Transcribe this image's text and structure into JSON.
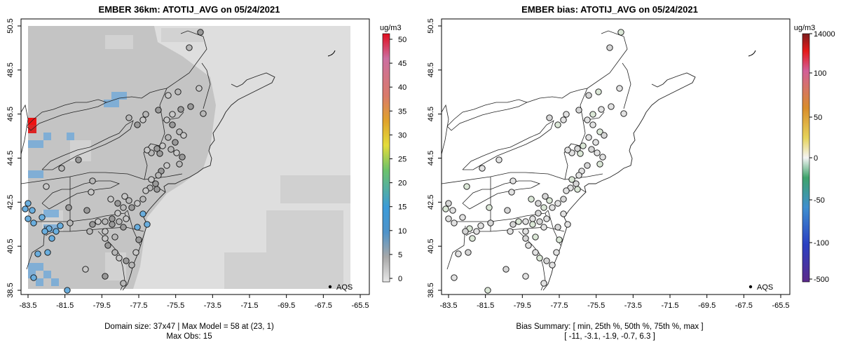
{
  "left": {
    "title": "EMBER 36km: ATOTIJ_AVG on 05/24/2021",
    "colorbar": {
      "unit": "ug/m3",
      "ticks": [
        "0",
        "5",
        "10",
        "15",
        "20",
        "25",
        "30",
        "35",
        "40",
        "45",
        "50"
      ]
    },
    "legend": "AQS",
    "footer1": "Domain size: 37x47 | Max Model = 58 at (23, 1)",
    "footer2": "Max Obs: 15"
  },
  "right": {
    "title": "EMBER bias: ATOTIJ_AVG on 05/24/2021",
    "colorbar": {
      "unit": "ug/m3",
      "ticks": [
        "14000",
        "100",
        "50",
        "0",
        "-50",
        "-100",
        "-500"
      ]
    },
    "legend": "AQS",
    "footer1": "Bias Summary: [ min, 25th %, 50th %, 75th %, max ]",
    "footer2": "[ -11,   -3.1,   -1.9,   -0.7,   6.3 ]"
  },
  "axes": {
    "x_ticks": [
      "-83.5",
      "-81.5",
      "-79.5",
      "-77.5",
      "-75.5",
      "-73.5",
      "-71.5",
      "-69.5",
      "-67.5",
      "-65.5"
    ],
    "y_ticks": [
      "50.5",
      "48.5",
      "46.5",
      "44.5",
      "42.5",
      "40.5",
      "38.5"
    ]
  },
  "colors": {
    "cell_dark": "#c4c4c4",
    "cell_light": "#dedede",
    "cell_blue": "#6fa9d9",
    "cell_red": "#ee1111"
  }
}
